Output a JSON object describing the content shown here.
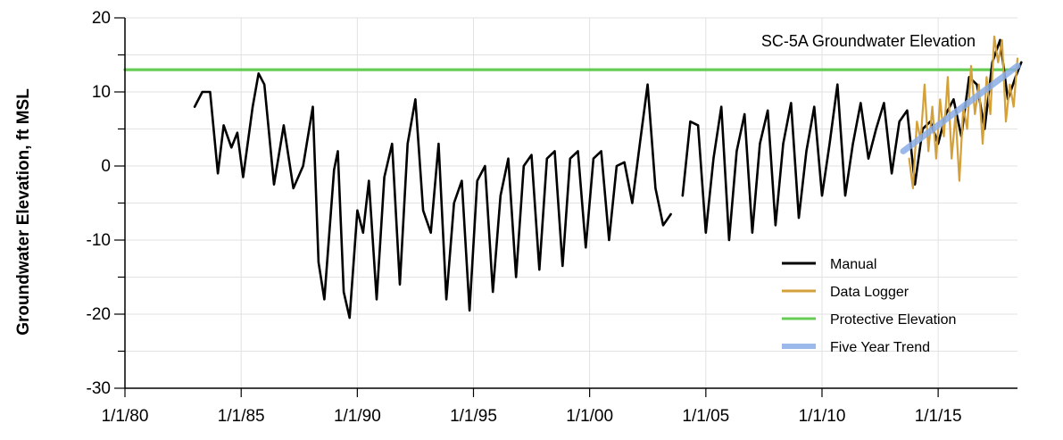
{
  "chart_data": {
    "type": "line",
    "title": "SC-5A Groundwater Elevation",
    "ylabel": "Groundwater Elevation, ft MSL",
    "xlabel": "",
    "ylim": [
      -30,
      20
    ],
    "yticks": [
      -30,
      -20,
      -10,
      0,
      10,
      20
    ],
    "xlim": [
      "1980-01-01",
      "2018-06-01"
    ],
    "xticks": [
      {
        "date": "1980-01-01",
        "label": "1/1/80"
      },
      {
        "date": "1985-01-01",
        "label": "1/1/85"
      },
      {
        "date": "1990-01-01",
        "label": "1/1/90"
      },
      {
        "date": "1995-01-01",
        "label": "1/1/95"
      },
      {
        "date": "2000-01-01",
        "label": "1/1/00"
      },
      {
        "date": "2005-01-01",
        "label": "1/1/05"
      },
      {
        "date": "2010-01-01",
        "label": "1/1/10"
      },
      {
        "date": "2015-01-01",
        "label": "1/1/15"
      }
    ],
    "grid": true,
    "legend_position": "bottom-right",
    "series": [
      {
        "name": "Manual",
        "color": "#000000",
        "segments": [
          [
            [
              "1983-01-01",
              8
            ],
            [
              "1983-05-01",
              10
            ],
            [
              "1983-09-01",
              10
            ],
            [
              "1984-01-01",
              -1
            ],
            [
              "1984-04-01",
              5.5
            ],
            [
              "1984-08-01",
              2.5
            ],
            [
              "1984-11-01",
              4.5
            ],
            [
              "1985-02-01",
              -1.5
            ],
            [
              "1985-07-01",
              8
            ],
            [
              "1985-10-01",
              12.5
            ],
            [
              "1986-01-01",
              11
            ],
            [
              "1986-06-01",
              -2.5
            ],
            [
              "1986-11-01",
              5.5
            ],
            [
              "1987-04-01",
              -3
            ],
            [
              "1987-09-01",
              0
            ],
            [
              "1988-02-01",
              8
            ],
            [
              "1988-05-01",
              -13
            ],
            [
              "1988-08-01",
              -18
            ],
            [
              "1989-01-01",
              -0.5
            ],
            [
              "1989-03-01",
              2
            ],
            [
              "1989-06-01",
              -17
            ],
            [
              "1989-09-01",
              -20.5
            ],
            [
              "1990-01-01",
              -6
            ],
            [
              "1990-04-01",
              -9
            ],
            [
              "1990-07-01",
              -2
            ],
            [
              "1990-11-01",
              -18
            ],
            [
              "1991-03-01",
              -1.5
            ],
            [
              "1991-07-01",
              3
            ],
            [
              "1991-11-01",
              -16
            ],
            [
              "1992-03-01",
              3
            ],
            [
              "1992-07-01",
              9
            ],
            [
              "1992-11-01",
              -6
            ],
            [
              "1993-03-01",
              -9
            ],
            [
              "1993-07-01",
              3
            ],
            [
              "1993-11-01",
              -18
            ],
            [
              "1994-03-01",
              -5
            ],
            [
              "1994-07-01",
              -2
            ],
            [
              "1994-11-01",
              -19.5
            ],
            [
              "1995-03-01",
              -2
            ],
            [
              "1995-07-01",
              0
            ],
            [
              "1995-11-01",
              -17
            ],
            [
              "1996-03-01",
              -4
            ],
            [
              "1996-07-01",
              1
            ],
            [
              "1996-11-01",
              -15
            ],
            [
              "1997-03-01",
              0
            ],
            [
              "1997-07-01",
              1.5
            ],
            [
              "1997-11-01",
              -14
            ],
            [
              "1998-03-01",
              1
            ],
            [
              "1998-07-01",
              2
            ],
            [
              "1998-11-01",
              -13.5
            ],
            [
              "1999-03-01",
              1
            ],
            [
              "1999-07-01",
              2
            ],
            [
              "1999-11-01",
              -11
            ],
            [
              "2000-03-01",
              1
            ],
            [
              "2000-07-01",
              2
            ],
            [
              "2000-11-01",
              -10
            ],
            [
              "2001-03-01",
              0
            ],
            [
              "2001-07-01",
              0.5
            ],
            [
              "2001-11-01",
              -5
            ],
            [
              "2002-03-01",
              3
            ],
            [
              "2002-07-01",
              11
            ],
            [
              "2002-11-01",
              -3
            ],
            [
              "2003-03-01",
              -8
            ],
            [
              "2003-07-01",
              -6.5
            ]
          ],
          [
            [
              "2004-01-01",
              -4
            ],
            [
              "2004-05-01",
              6
            ],
            [
              "2004-09-01",
              5.5
            ],
            [
              "2005-01-01",
              -9
            ],
            [
              "2005-05-01",
              1
            ],
            [
              "2005-09-01",
              8
            ],
            [
              "2006-01-01",
              -10
            ],
            [
              "2006-05-01",
              2
            ],
            [
              "2006-09-01",
              7
            ],
            [
              "2007-01-01",
              -9
            ],
            [
              "2007-05-01",
              3
            ],
            [
              "2007-09-01",
              7.5
            ],
            [
              "2008-01-01",
              -8
            ],
            [
              "2008-05-01",
              3
            ],
            [
              "2008-09-01",
              8.5
            ],
            [
              "2009-01-01",
              -7
            ],
            [
              "2009-05-01",
              2
            ],
            [
              "2009-09-01",
              8
            ],
            [
              "2010-01-01",
              -4
            ],
            [
              "2010-05-01",
              3
            ],
            [
              "2010-09-01",
              11
            ],
            [
              "2011-01-01",
              -4
            ],
            [
              "2011-05-01",
              3
            ],
            [
              "2011-09-01",
              8.5
            ],
            [
              "2012-01-01",
              1
            ],
            [
              "2012-05-01",
              5
            ],
            [
              "2012-09-01",
              8.5
            ],
            [
              "2013-01-01",
              -1
            ],
            [
              "2013-05-01",
              6
            ],
            [
              "2013-09-01",
              7.5
            ],
            [
              "2014-01-01",
              -2.5
            ],
            [
              "2014-05-01",
              5
            ],
            [
              "2014-09-01",
              6
            ],
            [
              "2015-01-01",
              3
            ],
            [
              "2015-05-01",
              7
            ],
            [
              "2015-09-01",
              9
            ],
            [
              "2016-01-01",
              4
            ],
            [
              "2016-05-01",
              12
            ],
            [
              "2016-09-01",
              11
            ],
            [
              "2017-01-01",
              5
            ],
            [
              "2017-05-01",
              14
            ],
            [
              "2017-09-01",
              17
            ],
            [
              "2018-01-01",
              9
            ],
            [
              "2018-05-01",
              12
            ],
            [
              "2018-08-01",
              14
            ]
          ]
        ]
      },
      {
        "name": "Data Logger",
        "color": "#D4A03A",
        "segments": [
          [
            [
              "2013-10-01",
              1
            ],
            [
              "2013-12-01",
              -3
            ],
            [
              "2014-02-01",
              6
            ],
            [
              "2014-04-01",
              3.5
            ],
            [
              "2014-06-01",
              11
            ],
            [
              "2014-08-01",
              2
            ],
            [
              "2014-10-01",
              8
            ],
            [
              "2014-12-01",
              1
            ],
            [
              "2015-02-01",
              9
            ],
            [
              "2015-04-01",
              4
            ],
            [
              "2015-06-01",
              12
            ],
            [
              "2015-08-01",
              1
            ],
            [
              "2015-10-01",
              7
            ],
            [
              "2015-12-01",
              -2
            ],
            [
              "2016-02-01",
              8
            ],
            [
              "2016-04-01",
              5
            ],
            [
              "2016-06-01",
              13.5
            ],
            [
              "2016-08-01",
              7
            ],
            [
              "2016-10-01",
              11
            ],
            [
              "2016-12-01",
              3
            ],
            [
              "2017-02-01",
              12
            ],
            [
              "2017-04-01",
              7
            ],
            [
              "2017-06-01",
              17.5
            ],
            [
              "2017-08-01",
              14
            ],
            [
              "2017-10-01",
              17
            ],
            [
              "2017-12-01",
              6
            ],
            [
              "2018-02-01",
              11
            ],
            [
              "2018-04-01",
              8
            ],
            [
              "2018-06-01",
              14.5
            ]
          ]
        ]
      },
      {
        "name": "Protective Elevation",
        "color": "#66CC55",
        "segments": [
          [
            [
              "1980-01-01",
              13
            ],
            [
              "2018-06-01",
              13
            ]
          ]
        ]
      },
      {
        "name": "Five Year Trend",
        "color": "#8AAEE8",
        "segments": [
          [
            [
              "2013-07-01",
              2
            ],
            [
              "2018-06-01",
              13.5
            ]
          ]
        ]
      }
    ]
  }
}
